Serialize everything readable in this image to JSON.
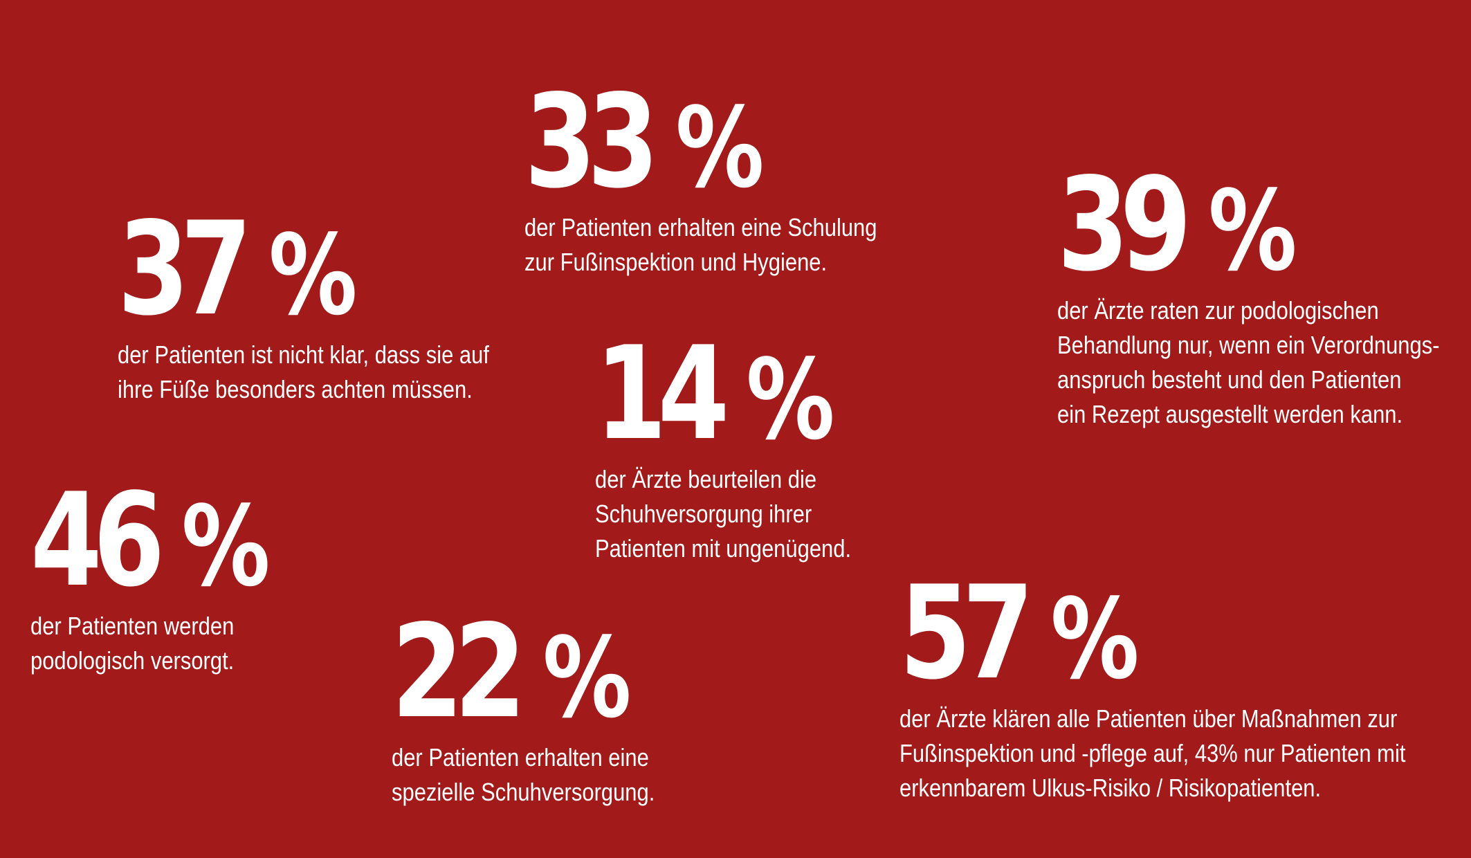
{
  "stats": [
    {
      "value": "33",
      "unit": "%",
      "description": "der Patienten erhalten eine Schulung\nzur Fußinspektion und Hygiene."
    },
    {
      "value": "37",
      "unit": "%",
      "description": "der Patienten ist nicht klar, dass sie auf\nihre Füße besonders achten müssen."
    },
    {
      "value": "39",
      "unit": "%",
      "description": "der Ärzte raten zur podologischen\nBehandlung nur, wenn ein Verordnungs-\nanspruch besteht und den Patienten\nein Rezept ausgestellt werden kann."
    },
    {
      "value": "14",
      "unit": "%",
      "description": "der Ärzte beurteilen die\nSchuhversorgung ihrer\nPatienten mit ungenügend."
    },
    {
      "value": "46",
      "unit": "%",
      "description": "der Patienten werden\npodologisch versorgt."
    },
    {
      "value": "22",
      "unit": "%",
      "description": "der Patienten erhalten eine\nspezielle Schuhversorgung."
    },
    {
      "value": "57",
      "unit": "%",
      "description": "der Ärzte klären alle Patienten über Maßnahmen zur\nFußinspektion und -pflege auf, 43% nur Patienten mit\nerkennbarem Ulkus-Risiko / Risikopatienten."
    }
  ],
  "colors": {
    "background": "#a21a1a",
    "text": "#ffffff"
  }
}
